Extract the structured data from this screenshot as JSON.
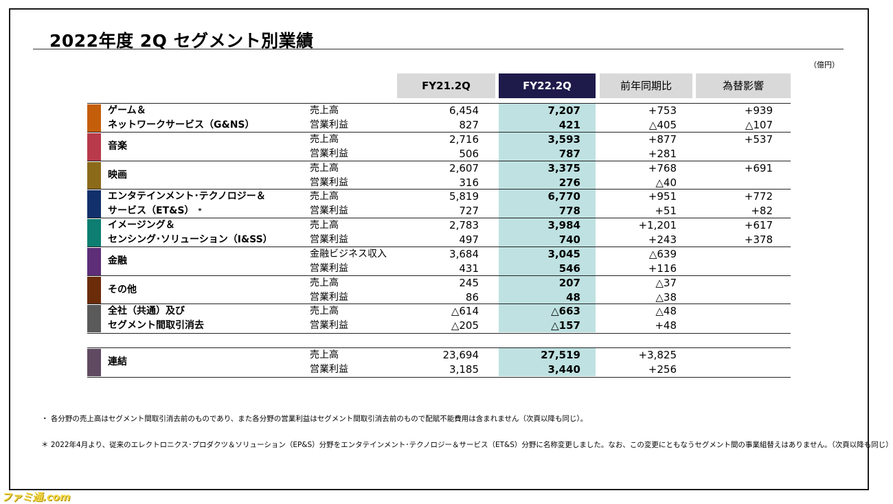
{
  "title": "2022年度 2Q セグメント別業績",
  "unit": "（億円）",
  "headers": {
    "fy21": "FY21.2Q",
    "fy22": "FY22.2Q",
    "yoy": "前年同期比",
    "fx": "為替影響"
  },
  "colors": {
    "header_dark": "#1e1b4b",
    "header_light": "#d9d9d9",
    "highlight_column": "#bfe1e1"
  },
  "segments": [
    {
      "name_l1": "ゲーム＆",
      "name_l2": "ネットワークサービス（G&NS）",
      "color": "#c45e0a",
      "rows": [
        {
          "label": "売上高",
          "fy21": "6,454",
          "fy22": "7,207",
          "yoy": "+753",
          "fx": "+939"
        },
        {
          "label": "営業利益",
          "fy21": "827",
          "fy22": "421",
          "yoy": "△405",
          "fx": "△107"
        }
      ]
    },
    {
      "name_l1": "音楽",
      "name_l2": "",
      "color": "#b83a4b",
      "rows": [
        {
          "label": "売上高",
          "fy21": "2,716",
          "fy22": "3,593",
          "yoy": "+877",
          "fx": "+537"
        },
        {
          "label": "営業利益",
          "fy21": "506",
          "fy22": "787",
          "yoy": "+281",
          "fx": ""
        }
      ]
    },
    {
      "name_l1": "映画",
      "name_l2": "",
      "color": "#8b6a1a",
      "rows": [
        {
          "label": "売上高",
          "fy21": "2,607",
          "fy22": "3,375",
          "yoy": "+768",
          "fx": "+691"
        },
        {
          "label": "営業利益",
          "fy21": "316",
          "fy22": "276",
          "yoy": "△40",
          "fx": ""
        }
      ]
    },
    {
      "name_l1": "エンタテインメント･テクノロジー＆",
      "name_l2": "サービス（ET&S）",
      "sup": "*",
      "color": "#12306b",
      "rows": [
        {
          "label": "売上高",
          "fy21": "5,819",
          "fy22": "6,770",
          "yoy": "+951",
          "fx": "+772"
        },
        {
          "label": "営業利益",
          "fy21": "727",
          "fy22": "778",
          "yoy": "+51",
          "fx": "+82"
        }
      ]
    },
    {
      "name_l1": "イメージング＆",
      "name_l2": "センシング･ソリューション（I&SS）",
      "color": "#0e7e72",
      "rows": [
        {
          "label": "売上高",
          "fy21": "2,783",
          "fy22": "3,984",
          "yoy": "+1,201",
          "fx": "+617"
        },
        {
          "label": "営業利益",
          "fy21": "497",
          "fy22": "740",
          "yoy": "+243",
          "fx": "+378"
        }
      ]
    },
    {
      "name_l1": "金融",
      "name_l2": "",
      "color": "#5e2e78",
      "rows": [
        {
          "label": "金融ビジネス収入",
          "fy21": "3,684",
          "fy22": "3,045",
          "yoy": "△639",
          "fx": ""
        },
        {
          "label": "営業利益",
          "fy21": "431",
          "fy22": "546",
          "yoy": "+116",
          "fx": ""
        }
      ]
    },
    {
      "name_l1": "その他",
      "name_l2": "",
      "color": "#6b2c0a",
      "rows": [
        {
          "label": "売上高",
          "fy21": "245",
          "fy22": "207",
          "yoy": "△37",
          "fx": ""
        },
        {
          "label": "営業利益",
          "fy21": "86",
          "fy22": "48",
          "yoy": "△38",
          "fx": ""
        }
      ]
    },
    {
      "name_l1": "全社（共通）及び",
      "name_l2": "セグメント間取引消去",
      "color": "#5a5a5a",
      "rows": [
        {
          "label": "売上高",
          "fy21": "△614",
          "fy22": "△663",
          "yoy": "△48",
          "fx": ""
        },
        {
          "label": "営業利益",
          "fy21": "△205",
          "fy22": "△157",
          "yoy": "+48",
          "fx": ""
        }
      ]
    }
  ],
  "consolidated": {
    "name_l1": "連結",
    "name_l2": "",
    "color": "#5f4a62",
    "rows": [
      {
        "label": "売上高",
        "fy21": "23,694",
        "fy22": "27,519",
        "yoy": "+3,825",
        "fx": ""
      },
      {
        "label": "営業利益",
        "fy21": "3,185",
        "fy22": "3,440",
        "yoy": "+256",
        "fx": ""
      }
    ]
  },
  "notes": [
    "・ 各分野の売上高はセグメント間取引消去前のものであり、また各分野の営業利益はセグメント間取引消去前のもので配賦不能費用は含まれません（次頁以降も同じ）。",
    "＊ 2022年4月より、従来のエレクトロニクス･プロダクツ＆ソリューション（EP&S）分野をエンタテインメント･テクノロジー＆サービス（ET&S）分野に名称変更しました。なお、この変更にともなうセグメント間の事業組替えはありません。（次頁以降も同じ）"
  ],
  "watermark": "ファミ通.com"
}
